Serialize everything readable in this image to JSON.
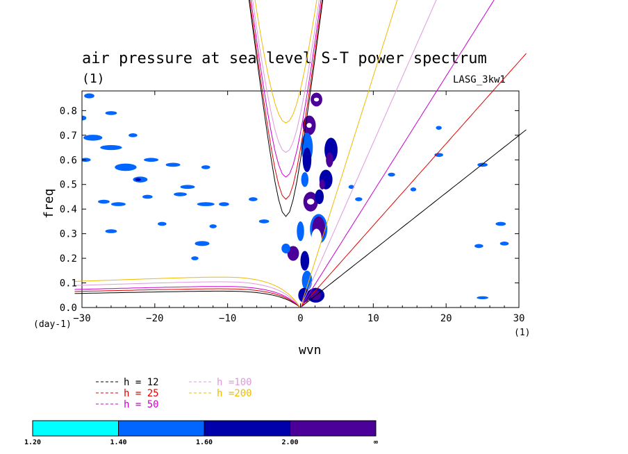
{
  "chart_data": {
    "type": "contour",
    "title": "air pressure at sea level S-T power spectrum",
    "units_label": "(1)",
    "model_label": "LASG_3kw1",
    "xlabel": "wvn",
    "ylabel": "freq",
    "x_unit_label": "(1)",
    "y_unit_label": "(day-1)",
    "xlim": [
      -30,
      30
    ],
    "ylim": [
      0,
      0.88
    ],
    "xticks": [
      -30,
      -20,
      -10,
      0,
      10,
      20,
      30
    ],
    "yticks": [
      0,
      0.1,
      0.2,
      0.3,
      0.4,
      0.5,
      0.6,
      0.7,
      0.8
    ],
    "ytick_labels": [
      "0.0",
      "0.1",
      "0.2",
      "0.3",
      "0.4",
      "0.5",
      "0.6",
      "0.7",
      "0.8"
    ],
    "legend": [
      {
        "label": "h = 12",
        "color": "#000000",
        "h": 12
      },
      {
        "label": "h = 25",
        "color": "#e00000",
        "h": 25
      },
      {
        "label": "h = 50",
        "color": "#cc00cc",
        "h": 50
      },
      {
        "label": "h =100",
        "color": "#dd99dd",
        "h": 100
      },
      {
        "label": "h =200",
        "color": "#eebb00",
        "h": 200
      }
    ],
    "colorbar": {
      "levels": [
        "1.20",
        "1.40",
        "1.60",
        "2.00",
        "∞"
      ],
      "colors": [
        "#00ffff",
        "#0066ff",
        "#0000aa",
        "#4b0099"
      ]
    },
    "dispersion_curves": {
      "eig_min_freq": {
        "12": 0.37,
        "25": 0.44,
        "50": 0.53,
        "100": 0.63,
        "200": 0.75
      },
      "mrg_peak_freq": {
        "12": 0.07,
        "25": 0.08,
        "50": 0.09,
        "100": 0.11,
        "200": 0.13
      },
      "kelvin_slope": {
        "12": 0.0233,
        "25": 0.0333,
        "50": 0.047,
        "100": 0.067,
        "200": 0.094
      }
    },
    "blobs": [
      {
        "x": 2.2,
        "y": 0.845,
        "rx": 0.8,
        "ry": 0.028,
        "level": 3
      },
      {
        "x": 2.2,
        "y": 0.845,
        "rx": 0.35,
        "ry": 0.008,
        "level": 4
      },
      {
        "x": 1.2,
        "y": 0.74,
        "rx": 0.9,
        "ry": 0.04,
        "level": 3
      },
      {
        "x": 1.2,
        "y": 0.74,
        "rx": 0.35,
        "ry": 0.01,
        "level": 4
      },
      {
        "x": 0.9,
        "y": 0.65,
        "rx": 0.8,
        "ry": 0.06,
        "level": 1
      },
      {
        "x": 0.9,
        "y": 0.6,
        "rx": 0.6,
        "ry": 0.05,
        "level": 2
      },
      {
        "x": 4.2,
        "y": 0.64,
        "rx": 0.9,
        "ry": 0.05,
        "level": 2
      },
      {
        "x": 4.0,
        "y": 0.6,
        "rx": 0.5,
        "ry": 0.03,
        "level": 3
      },
      {
        "x": 3.5,
        "y": 0.52,
        "rx": 0.9,
        "ry": 0.04,
        "level": 2
      },
      {
        "x": 3.0,
        "y": 0.5,
        "rx": 0.4,
        "ry": 0.02,
        "level": 3
      },
      {
        "x": 1.4,
        "y": 0.43,
        "rx": 1.0,
        "ry": 0.04,
        "level": 3
      },
      {
        "x": 1.4,
        "y": 0.43,
        "rx": 0.5,
        "ry": 0.012,
        "level": 4
      },
      {
        "x": 2.6,
        "y": 0.45,
        "rx": 0.6,
        "ry": 0.03,
        "level": 2
      },
      {
        "x": 2.5,
        "y": 0.32,
        "rx": 1.2,
        "ry": 0.06,
        "level": 1
      },
      {
        "x": 2.5,
        "y": 0.32,
        "rx": 0.9,
        "ry": 0.05,
        "level": 3
      },
      {
        "x": 2.2,
        "y": 0.28,
        "rx": 0.7,
        "ry": 0.04,
        "level": 4
      },
      {
        "x": -1.0,
        "y": 0.22,
        "rx": 0.8,
        "ry": 0.03,
        "level": 3
      },
      {
        "x": -2.0,
        "y": 0.24,
        "rx": 0.6,
        "ry": 0.02,
        "level": 1
      },
      {
        "x": 0.6,
        "y": 0.19,
        "rx": 0.6,
        "ry": 0.04,
        "level": 2
      },
      {
        "x": 0.9,
        "y": 0.11,
        "rx": 0.7,
        "ry": 0.04,
        "level": 1
      },
      {
        "x": 0.5,
        "y": 0.05,
        "rx": 0.8,
        "ry": 0.03,
        "level": 2
      },
      {
        "x": 2.1,
        "y": 0.05,
        "rx": 1.2,
        "ry": 0.03,
        "level": 2
      },
      {
        "x": 2.1,
        "y": 0.05,
        "rx": 0.7,
        "ry": 0.02,
        "level": 3
      },
      {
        "x": 0.0,
        "y": 0.31,
        "rx": 0.5,
        "ry": 0.04,
        "level": 1
      },
      {
        "x": 0.6,
        "y": 0.52,
        "rx": 0.5,
        "ry": 0.03,
        "level": 1
      },
      {
        "x": -28.5,
        "y": 0.69,
        "rx": 1.3,
        "ry": 0.012,
        "level": 1
      },
      {
        "x": -26.0,
        "y": 0.65,
        "rx": 1.5,
        "ry": 0.01,
        "level": 1
      },
      {
        "x": -24.0,
        "y": 0.57,
        "rx": 1.5,
        "ry": 0.015,
        "level": 1
      },
      {
        "x": -22.0,
        "y": 0.52,
        "rx": 1.0,
        "ry": 0.012,
        "level": 1
      },
      {
        "x": -22.3,
        "y": 0.52,
        "rx": 0.4,
        "ry": 0.006,
        "level": 2
      },
      {
        "x": -30.0,
        "y": 0.77,
        "rx": 0.6,
        "ry": 0.01,
        "level": 1
      },
      {
        "x": -29.0,
        "y": 0.86,
        "rx": 0.7,
        "ry": 0.01,
        "level": 1
      },
      {
        "x": -26.0,
        "y": 0.79,
        "rx": 0.8,
        "ry": 0.008,
        "level": 1
      },
      {
        "x": -29.5,
        "y": 0.6,
        "rx": 0.7,
        "ry": 0.008,
        "level": 1
      },
      {
        "x": -20.5,
        "y": 0.6,
        "rx": 1.0,
        "ry": 0.008,
        "level": 1
      },
      {
        "x": -17.5,
        "y": 0.58,
        "rx": 1.0,
        "ry": 0.008,
        "level": 1
      },
      {
        "x": -15.5,
        "y": 0.49,
        "rx": 1.0,
        "ry": 0.008,
        "level": 1
      },
      {
        "x": -13.0,
        "y": 0.57,
        "rx": 0.6,
        "ry": 0.008,
        "level": 1
      },
      {
        "x": -27.0,
        "y": 0.43,
        "rx": 0.8,
        "ry": 0.008,
        "level": 1
      },
      {
        "x": -25.0,
        "y": 0.42,
        "rx": 1.0,
        "ry": 0.008,
        "level": 1
      },
      {
        "x": -21.0,
        "y": 0.45,
        "rx": 0.7,
        "ry": 0.008,
        "level": 1
      },
      {
        "x": -13.0,
        "y": 0.42,
        "rx": 1.2,
        "ry": 0.008,
        "level": 1
      },
      {
        "x": -10.5,
        "y": 0.42,
        "rx": 0.7,
        "ry": 0.008,
        "level": 1
      },
      {
        "x": -16.5,
        "y": 0.46,
        "rx": 0.9,
        "ry": 0.008,
        "level": 1
      },
      {
        "x": -19.0,
        "y": 0.34,
        "rx": 0.6,
        "ry": 0.008,
        "level": 1
      },
      {
        "x": -13.5,
        "y": 0.26,
        "rx": 1.0,
        "ry": 0.01,
        "level": 1
      },
      {
        "x": -12.0,
        "y": 0.33,
        "rx": 0.5,
        "ry": 0.008,
        "level": 1
      },
      {
        "x": -6.5,
        "y": 0.44,
        "rx": 0.6,
        "ry": 0.008,
        "level": 1
      },
      {
        "x": -5.0,
        "y": 0.35,
        "rx": 0.7,
        "ry": 0.008,
        "level": 1
      },
      {
        "x": -14.5,
        "y": 0.2,
        "rx": 0.5,
        "ry": 0.008,
        "level": 1
      },
      {
        "x": -26.0,
        "y": 0.31,
        "rx": 0.8,
        "ry": 0.008,
        "level": 1
      },
      {
        "x": -23.0,
        "y": 0.7,
        "rx": 0.6,
        "ry": 0.008,
        "level": 1
      },
      {
        "x": 7.0,
        "y": 0.49,
        "rx": 0.4,
        "ry": 0.008,
        "level": 1
      },
      {
        "x": 12.5,
        "y": 0.54,
        "rx": 0.5,
        "ry": 0.008,
        "level": 1
      },
      {
        "x": 19.0,
        "y": 0.62,
        "rx": 0.6,
        "ry": 0.008,
        "level": 1
      },
      {
        "x": 25.0,
        "y": 0.58,
        "rx": 0.7,
        "ry": 0.008,
        "level": 1
      },
      {
        "x": 27.5,
        "y": 0.34,
        "rx": 0.7,
        "ry": 0.008,
        "level": 1
      },
      {
        "x": 24.5,
        "y": 0.25,
        "rx": 0.6,
        "ry": 0.008,
        "level": 1
      },
      {
        "x": 28.0,
        "y": 0.26,
        "rx": 0.6,
        "ry": 0.008,
        "level": 1
      },
      {
        "x": 25.0,
        "y": 0.04,
        "rx": 0.8,
        "ry": 0.006,
        "level": 1
      },
      {
        "x": 19.0,
        "y": 0.73,
        "rx": 0.4,
        "ry": 0.008,
        "level": 1
      },
      {
        "x": 8.0,
        "y": 0.44,
        "rx": 0.5,
        "ry": 0.008,
        "level": 1
      },
      {
        "x": 15.5,
        "y": 0.48,
        "rx": 0.4,
        "ry": 0.008,
        "level": 1
      }
    ]
  }
}
